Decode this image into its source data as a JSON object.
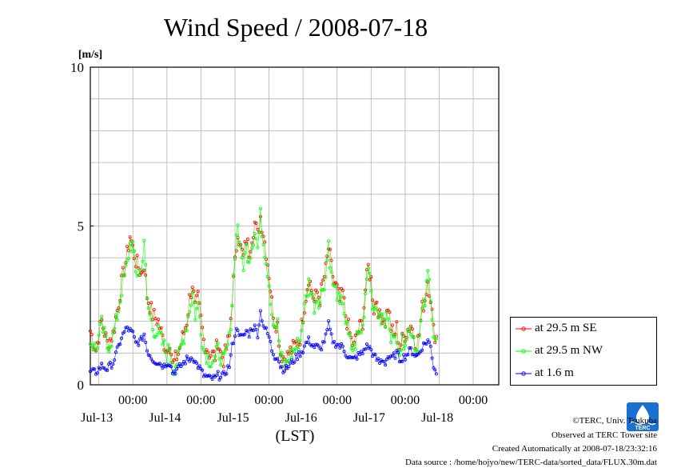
{
  "chart_data": {
    "type": "line",
    "title": "Wind Speed / 2008-07-18",
    "ylabel_unit": "[m/s]",
    "xlabel": "(LST)",
    "ylim": [
      0,
      10
    ],
    "y_ticks": [
      "0",
      "5",
      "10"
    ],
    "x_time_labels": [
      "00:00",
      "00:00",
      "00:00",
      "00:00",
      "00:00",
      "00:00"
    ],
    "x_date_labels": [
      "Jul-13",
      "Jul-14",
      "Jul-15",
      "Jul-16",
      "Jul-17",
      "Jul-18"
    ],
    "x_range_hours": [
      -15,
      129
    ],
    "grid": true,
    "legend_position": "right",
    "series": [
      {
        "name": "at 29.5 m SE",
        "color": "#ff0000",
        "keypoints": [
          [
            -15,
            1.7
          ],
          [
            -13,
            1.1
          ],
          [
            -11,
            2.0
          ],
          [
            -9,
            1.3
          ],
          [
            -7,
            1.6
          ],
          [
            -5,
            2.6
          ],
          [
            -4,
            3.2
          ],
          [
            -2,
            4.1
          ],
          [
            -1,
            4.7
          ],
          [
            0,
            4.3
          ],
          [
            1,
            3.9
          ],
          [
            3,
            3.5
          ],
          [
            4,
            3.8
          ],
          [
            5,
            2.8
          ],
          [
            7,
            2.2
          ],
          [
            9,
            2.0
          ],
          [
            11,
            1.3
          ],
          [
            12,
            1.1
          ],
          [
            13,
            1.4
          ],
          [
            14,
            0.6
          ],
          [
            16,
            1.0
          ],
          [
            17,
            1.3
          ],
          [
            19,
            2.0
          ],
          [
            20,
            2.7
          ],
          [
            21,
            3.2
          ],
          [
            22,
            2.4
          ],
          [
            23,
            2.7
          ],
          [
            25,
            1.4
          ],
          [
            27,
            1.0
          ],
          [
            29,
            0.9
          ],
          [
            30,
            1.4
          ],
          [
            31,
            1.0
          ],
          [
            32,
            0.8
          ],
          [
            34,
            1.5
          ],
          [
            35,
            2.7
          ],
          [
            36,
            3.8
          ],
          [
            37,
            4.9
          ],
          [
            38,
            4.3
          ],
          [
            39,
            4.0
          ],
          [
            40,
            4.6
          ],
          [
            41,
            4.2
          ],
          [
            42,
            4.7
          ],
          [
            43,
            5.1
          ],
          [
            44,
            4.7
          ],
          [
            45,
            5.3
          ],
          [
            46,
            4.8
          ],
          [
            47,
            4.2
          ],
          [
            48,
            3.5
          ],
          [
            49,
            2.6
          ],
          [
            50,
            2.0
          ],
          [
            51,
            1.9
          ],
          [
            52,
            1.0
          ],
          [
            53,
            0.9
          ],
          [
            54,
            0.8
          ],
          [
            55,
            1.0
          ],
          [
            57,
            1.2
          ],
          [
            59,
            1.5
          ],
          [
            60,
            2.2
          ],
          [
            61,
            2.8
          ],
          [
            62,
            3.4
          ],
          [
            63,
            3.0
          ],
          [
            64,
            2.6
          ],
          [
            65,
            2.9
          ],
          [
            66,
            2.7
          ],
          [
            67,
            3.2
          ],
          [
            68,
            3.6
          ],
          [
            69,
            4.3
          ],
          [
            70,
            3.7
          ],
          [
            71,
            3.2
          ],
          [
            72,
            3.0
          ],
          [
            73,
            2.6
          ],
          [
            74,
            2.9
          ],
          [
            75,
            2.2
          ],
          [
            76,
            1.8
          ],
          [
            77,
            1.4
          ],
          [
            78,
            1.2
          ],
          [
            79,
            1.6
          ],
          [
            81,
            2.0
          ],
          [
            82,
            3.0
          ],
          [
            83,
            3.7
          ],
          [
            84,
            3.3
          ],
          [
            85,
            2.4
          ],
          [
            86,
            2.7
          ],
          [
            87,
            2.1
          ],
          [
            88,
            2.2
          ],
          [
            89,
            2.0
          ],
          [
            90,
            2.5
          ],
          [
            91,
            1.8
          ],
          [
            92,
            1.5
          ],
          [
            93,
            1.8
          ],
          [
            94,
            1.2
          ],
          [
            96,
            1.6
          ],
          [
            98,
            1.9
          ],
          [
            99,
            1.6
          ],
          [
            100,
            1.2
          ],
          [
            101,
            1.6
          ],
          [
            102,
            2.4
          ],
          [
            103,
            2.7
          ],
          [
            104,
            3.3
          ],
          [
            105,
            2.8
          ],
          [
            106,
            1.7
          ],
          [
            107,
            1.5
          ]
        ]
      },
      {
        "name": "at 29.5 m NW",
        "color": "#00ff00",
        "keypoints": [
          [
            -15,
            1.4
          ],
          [
            -13,
            1.1
          ],
          [
            -11,
            1.9
          ],
          [
            -9,
            1.2
          ],
          [
            -7,
            1.5
          ],
          [
            -5,
            2.4
          ],
          [
            -4,
            3.0
          ],
          [
            -2,
            3.8
          ],
          [
            -1,
            4.4
          ],
          [
            0,
            4.4
          ],
          [
            1,
            3.5
          ],
          [
            3,
            3.6
          ],
          [
            4,
            4.6
          ],
          [
            5,
            2.6
          ],
          [
            7,
            1.8
          ],
          [
            9,
            1.6
          ],
          [
            11,
            1.2
          ],
          [
            12,
            0.9
          ],
          [
            13,
            1.2
          ],
          [
            14,
            0.5
          ],
          [
            16,
            0.8
          ],
          [
            17,
            1.2
          ],
          [
            19,
            1.9
          ],
          [
            20,
            2.4
          ],
          [
            21,
            2.9
          ],
          [
            22,
            2.2
          ],
          [
            23,
            2.5
          ],
          [
            25,
            1.1
          ],
          [
            27,
            0.8
          ],
          [
            29,
            0.8
          ],
          [
            30,
            1.1
          ],
          [
            31,
            0.9
          ],
          [
            32,
            0.7
          ],
          [
            34,
            1.4
          ],
          [
            35,
            2.6
          ],
          [
            36,
            4.2
          ],
          [
            37,
            5.1
          ],
          [
            38,
            4.1
          ],
          [
            39,
            3.8
          ],
          [
            40,
            4.3
          ],
          [
            41,
            4.0
          ],
          [
            42,
            4.4
          ],
          [
            43,
            4.9
          ],
          [
            44,
            4.3
          ],
          [
            45,
            5.3
          ],
          [
            46,
            4.5
          ],
          [
            47,
            4.0
          ],
          [
            48,
            3.2
          ],
          [
            49,
            2.3
          ],
          [
            50,
            1.9
          ],
          [
            51,
            1.9
          ],
          [
            52,
            0.9
          ],
          [
            53,
            0.7
          ],
          [
            54,
            0.6
          ],
          [
            55,
            0.9
          ],
          [
            57,
            1.1
          ],
          [
            59,
            1.4
          ],
          [
            60,
            2.1
          ],
          [
            61,
            2.7
          ],
          [
            62,
            3.2
          ],
          [
            63,
            2.9
          ],
          [
            64,
            2.5
          ],
          [
            65,
            2.8
          ],
          [
            66,
            2.6
          ],
          [
            67,
            3.1
          ],
          [
            68,
            3.4
          ],
          [
            69,
            4.5
          ],
          [
            70,
            3.4
          ],
          [
            71,
            3.0
          ],
          [
            72,
            2.9
          ],
          [
            73,
            2.4
          ],
          [
            74,
            2.7
          ],
          [
            75,
            2.0
          ],
          [
            76,
            1.5
          ],
          [
            77,
            1.2
          ],
          [
            78,
            1.1
          ],
          [
            79,
            1.5
          ],
          [
            81,
            1.8
          ],
          [
            82,
            2.9
          ],
          [
            83,
            3.9
          ],
          [
            84,
            3.1
          ],
          [
            85,
            2.2
          ],
          [
            86,
            2.5
          ],
          [
            87,
            2.0
          ],
          [
            88,
            2.1
          ],
          [
            89,
            1.9
          ],
          [
            90,
            2.3
          ],
          [
            91,
            1.6
          ],
          [
            92,
            1.3
          ],
          [
            93,
            1.6
          ],
          [
            94,
            1.1
          ],
          [
            96,
            1.5
          ],
          [
            98,
            1.8
          ],
          [
            99,
            1.5
          ],
          [
            100,
            1.1
          ],
          [
            101,
            1.5
          ],
          [
            102,
            2.3
          ],
          [
            103,
            2.6
          ],
          [
            104,
            3.5
          ],
          [
            105,
            2.9
          ],
          [
            106,
            1.6
          ],
          [
            107,
            1.3
          ]
        ]
      },
      {
        "name": "at 1.6 m",
        "color": "#0000ff",
        "keypoints": [
          [
            -15,
            0.4
          ],
          [
            -13,
            0.4
          ],
          [
            -11,
            0.6
          ],
          [
            -9,
            0.5
          ],
          [
            -7,
            0.7
          ],
          [
            -5,
            1.2
          ],
          [
            -4,
            1.5
          ],
          [
            -2,
            1.8
          ],
          [
            -1,
            1.7
          ],
          [
            0,
            1.6
          ],
          [
            1,
            1.3
          ],
          [
            3,
            1.4
          ],
          [
            4,
            1.6
          ],
          [
            5,
            1.1
          ],
          [
            7,
            0.8
          ],
          [
            9,
            0.7
          ],
          [
            11,
            0.6
          ],
          [
            12,
            0.7
          ],
          [
            13,
            0.7
          ],
          [
            14,
            0.4
          ],
          [
            16,
            0.5
          ],
          [
            17,
            0.6
          ],
          [
            19,
            0.8
          ],
          [
            20,
            0.8
          ],
          [
            21,
            0.9
          ],
          [
            22,
            0.7
          ],
          [
            23,
            0.6
          ],
          [
            25,
            0.3
          ],
          [
            27,
            0.2
          ],
          [
            29,
            0.2
          ],
          [
            30,
            0.3
          ],
          [
            31,
            0.2
          ],
          [
            32,
            0.3
          ],
          [
            34,
            0.6
          ],
          [
            35,
            1.2
          ],
          [
            36,
            1.6
          ],
          [
            37,
            1.8
          ],
          [
            38,
            1.5
          ],
          [
            39,
            1.5
          ],
          [
            40,
            1.7
          ],
          [
            41,
            1.6
          ],
          [
            42,
            1.8
          ],
          [
            43,
            1.8
          ],
          [
            44,
            1.6
          ],
          [
            45,
            2.3
          ],
          [
            46,
            1.9
          ],
          [
            47,
            1.7
          ],
          [
            48,
            1.5
          ],
          [
            49,
            1.1
          ],
          [
            50,
            0.9
          ],
          [
            51,
            0.9
          ],
          [
            52,
            0.6
          ],
          [
            53,
            0.5
          ],
          [
            54,
            0.5
          ],
          [
            55,
            0.6
          ],
          [
            57,
            0.8
          ],
          [
            59,
            1.0
          ],
          [
            60,
            1.1
          ],
          [
            61,
            1.3
          ],
          [
            62,
            1.4
          ],
          [
            63,
            1.3
          ],
          [
            64,
            1.2
          ],
          [
            65,
            1.2
          ],
          [
            66,
            1.1
          ],
          [
            67,
            1.3
          ],
          [
            68,
            1.5
          ],
          [
            69,
            1.9
          ],
          [
            70,
            1.5
          ],
          [
            71,
            1.3
          ],
          [
            72,
            1.3
          ],
          [
            73,
            1.2
          ],
          [
            74,
            1.2
          ],
          [
            75,
            1.0
          ],
          [
            76,
            0.9
          ],
          [
            77,
            0.8
          ],
          [
            78,
            0.8
          ],
          [
            79,
            0.9
          ],
          [
            81,
            1.0
          ],
          [
            82,
            1.2
          ],
          [
            83,
            1.2
          ],
          [
            84,
            1.1
          ],
          [
            85,
            0.9
          ],
          [
            86,
            0.8
          ],
          [
            87,
            0.7
          ],
          [
            88,
            0.8
          ],
          [
            89,
            0.7
          ],
          [
            90,
            0.9
          ],
          [
            91,
            0.8
          ],
          [
            92,
            0.9
          ],
          [
            93,
            1.0
          ],
          [
            94,
            0.8
          ],
          [
            96,
            0.9
          ],
          [
            98,
            1.1
          ],
          [
            99,
            1.0
          ],
          [
            100,
            0.9
          ],
          [
            101,
            1.0
          ],
          [
            102,
            1.2
          ],
          [
            103,
            1.3
          ],
          [
            104,
            1.4
          ],
          [
            105,
            1.2
          ],
          [
            106,
            0.6
          ],
          [
            107,
            0.4
          ]
        ]
      }
    ]
  },
  "footer": {
    "copyright": "©TERC, Univ. Tsukuba",
    "observed": "Observed at TERC Tower site",
    "created": "Created Automatically at 2008-07-18/23:32:16",
    "source": "Data source : /home/hojyo/new/TERC-data/sorted_data/FLUX.30m.dat",
    "logo_text": "TERC",
    "logo_color": "#1a6fd0"
  }
}
